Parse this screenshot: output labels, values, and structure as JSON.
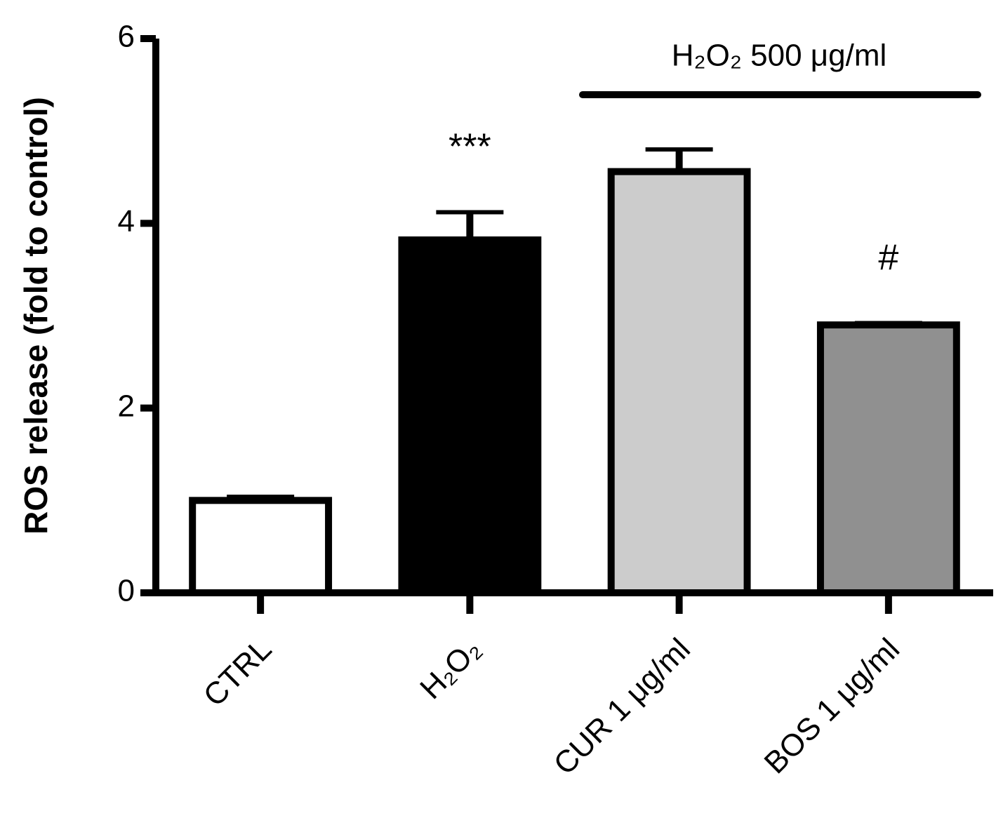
{
  "chart_data": {
    "type": "bar",
    "y_label": "ROS release (fold to control)",
    "categories": [
      "CTRL",
      "H₂O₂",
      "CUR 1 μg/ml",
      "BOS 1 μg/ml"
    ],
    "values": [
      1.0,
      3.82,
      4.56,
      2.9
    ],
    "errors": [
      0.04,
      0.3,
      0.24,
      0.02
    ],
    "colors": [
      "#ffffff",
      "#000000",
      "#cccccc",
      "#909090"
    ],
    "significance": [
      null,
      "***",
      null,
      "#"
    ],
    "bracket_label": "H₂O₂ 500 μg/ml",
    "ylim": [
      0,
      6
    ],
    "yticks": [
      0,
      2,
      4,
      6
    ],
    "grid": false
  }
}
